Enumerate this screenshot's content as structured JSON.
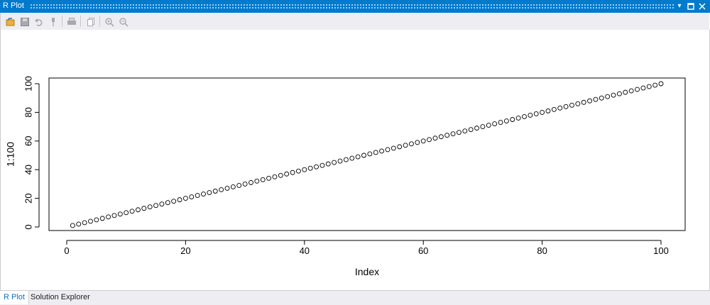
{
  "window": {
    "title": "R Plot",
    "accent": "#007acc"
  },
  "toolbar": {
    "icons": [
      "import-icon",
      "save-icon",
      "undo-icon",
      "pin-icon",
      "print-icon",
      "copy-icon",
      "zoom-in-icon",
      "zoom-out-icon"
    ]
  },
  "tabs": [
    {
      "label": "R Plot",
      "active": true
    },
    {
      "label": "Solution Explorer",
      "active": false
    }
  ],
  "chart_data": {
    "type": "scatter",
    "series": [
      {
        "x_from": 1,
        "x_to": 100,
        "y_equals_x": true
      }
    ],
    "xlabel": "Index",
    "ylabel": "1:100",
    "xlim": [
      0,
      100
    ],
    "ylim": [
      0,
      100
    ],
    "xticks": [
      "0",
      "20",
      "40",
      "60",
      "80",
      "100"
    ],
    "yticks": [
      "0",
      "20",
      "40",
      "60",
      "80",
      "100"
    ],
    "grid": false
  }
}
